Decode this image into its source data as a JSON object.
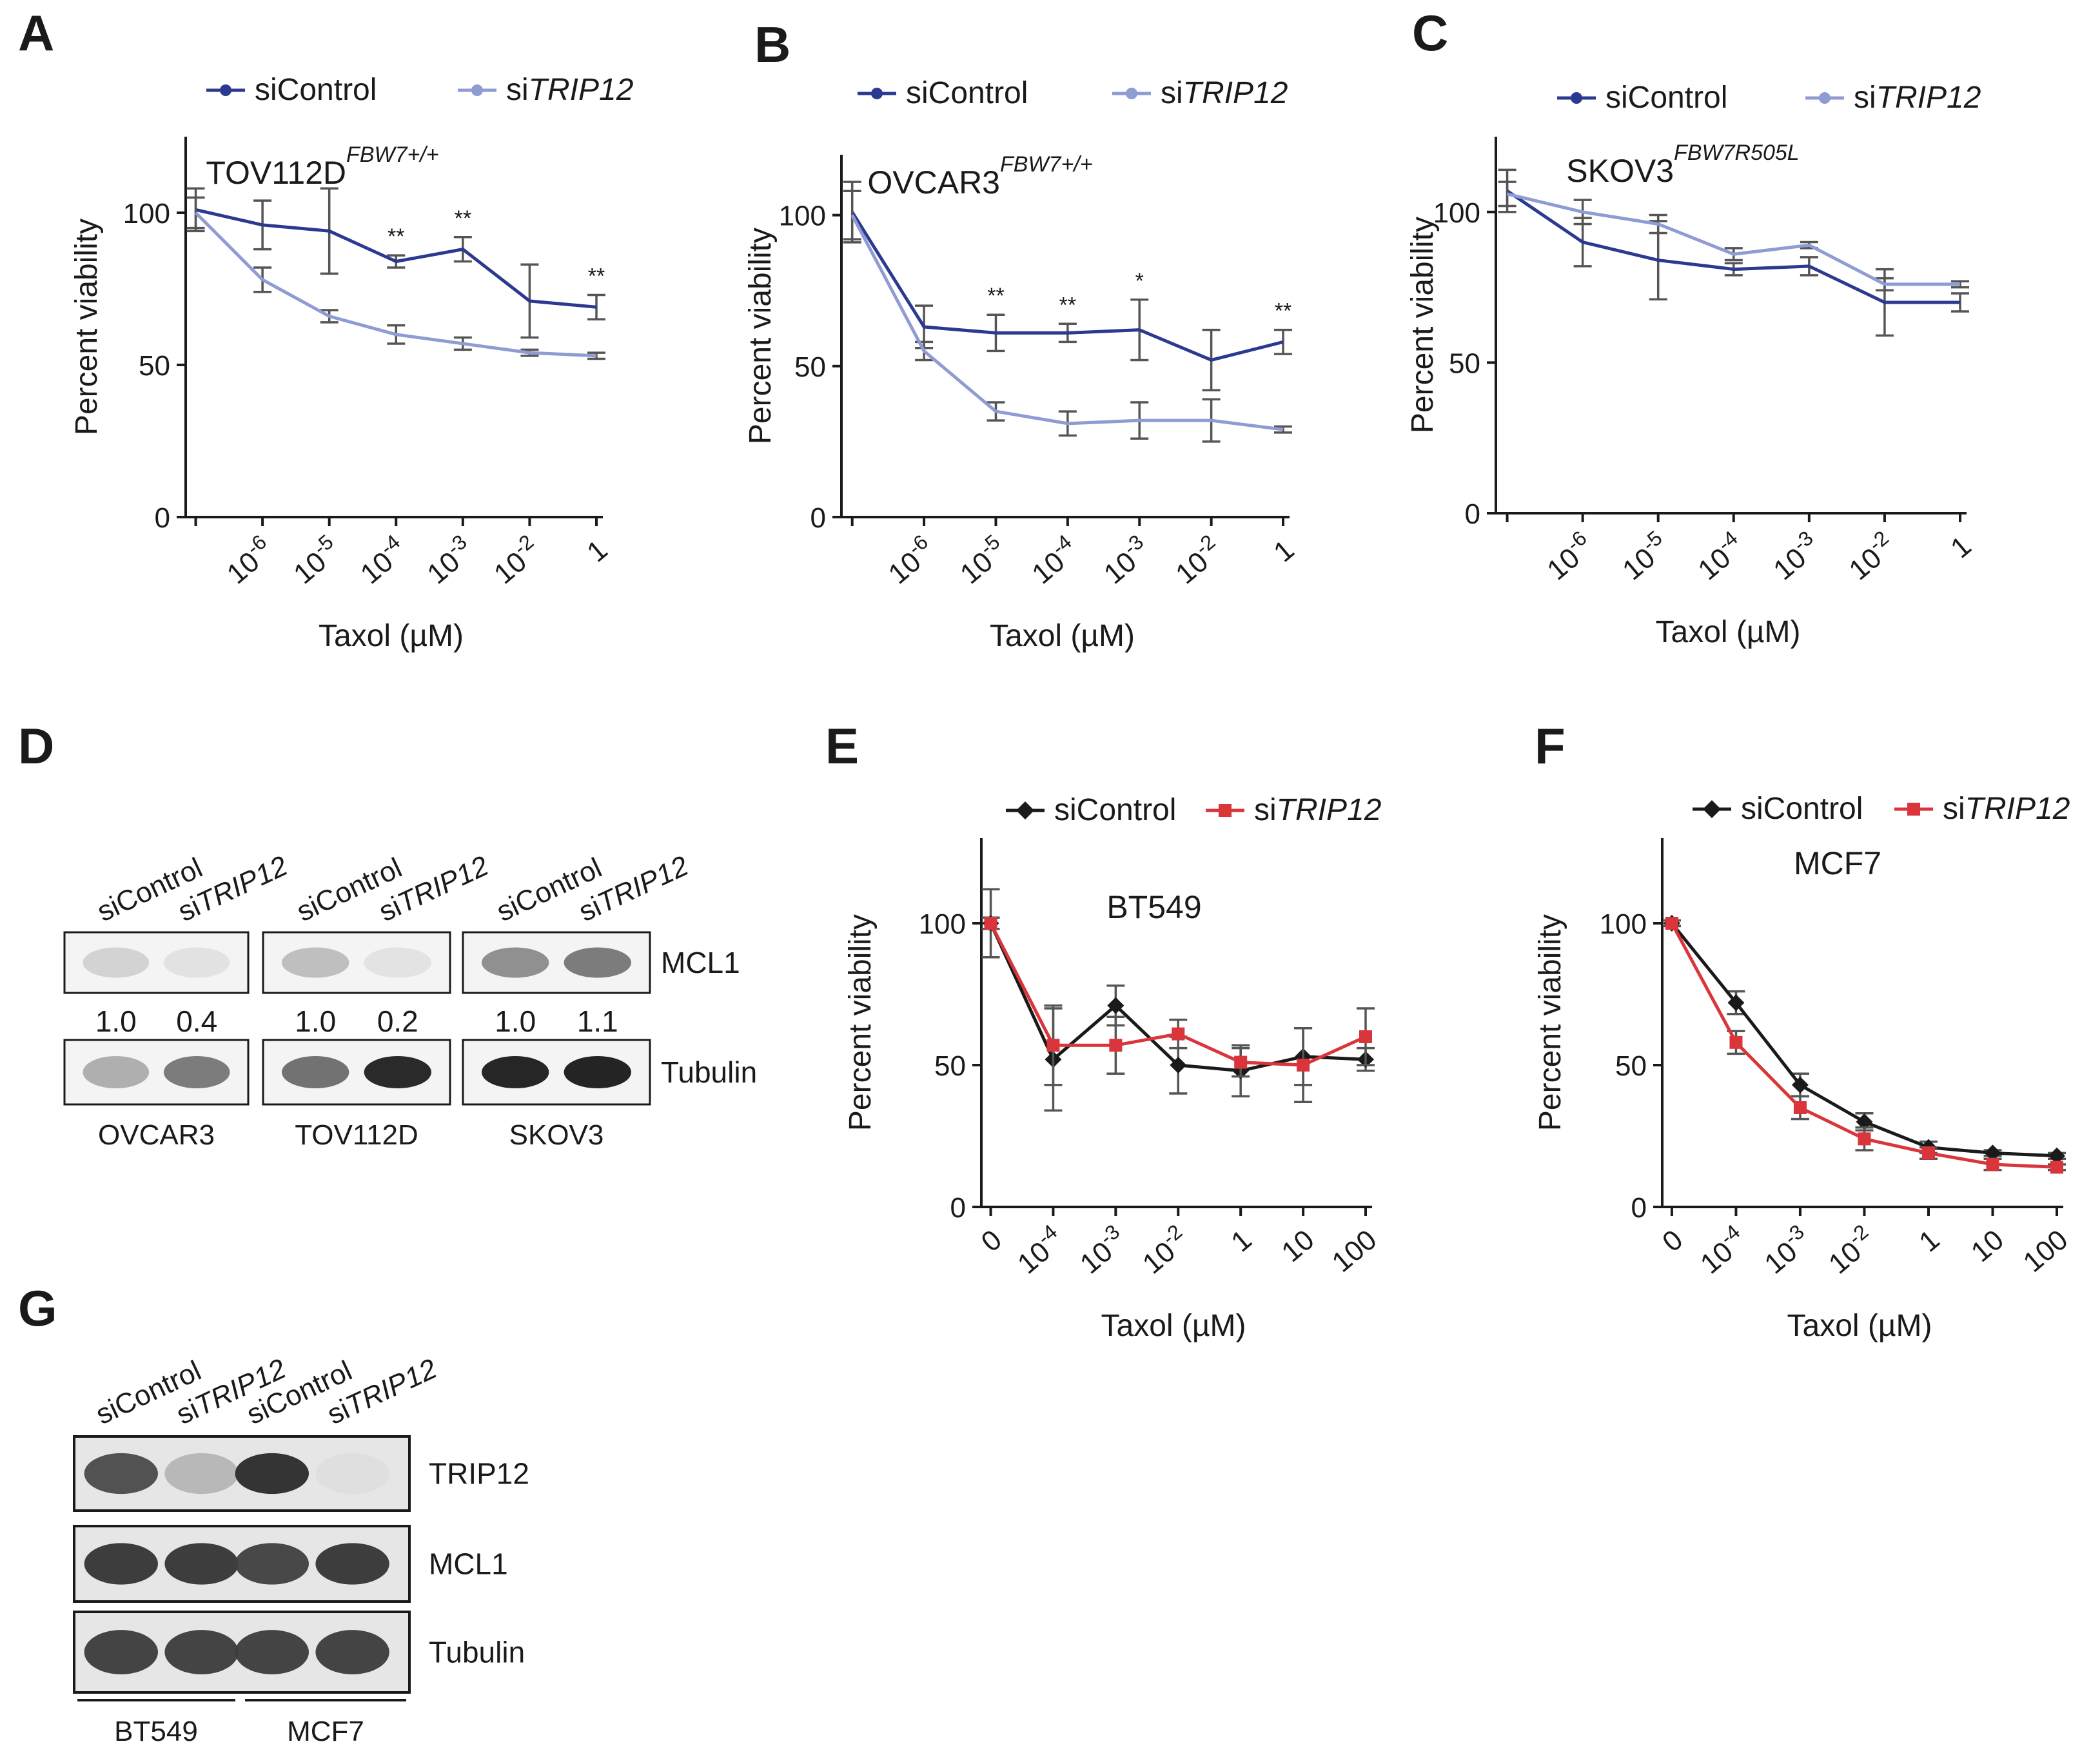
{
  "panels": {
    "A": "A",
    "B": "B",
    "C": "C",
    "D": "D",
    "E": "E",
    "F": "F",
    "G": "G"
  },
  "chart_data": [
    {
      "id": "A",
      "type": "line",
      "cell_line": "TOV112D",
      "superscript": "FBW7+/+",
      "xlabel": "Taxol (µM)",
      "ylabel": "Percent viability",
      "ylim": [
        0,
        125
      ],
      "yticks": [
        "0",
        "50",
        "100"
      ],
      "x_ticks": [
        "10^-6",
        "10^-5",
        "10^-4",
        "10^-3",
        "10^-2",
        "1"
      ],
      "colors": {
        "siControl": "#2b3990",
        "siTRIP12": "#8f9bd3"
      },
      "series": [
        {
          "name": "siControl",
          "prefix": "si",
          "label": "Control",
          "italic": false,
          "values": [
            101,
            96,
            94,
            84,
            88,
            71,
            69
          ],
          "errors": [
            7,
            8,
            14,
            2,
            4,
            12,
            4
          ]
        },
        {
          "name": "siTRIP12",
          "prefix": "si",
          "label": "TRIP12",
          "italic": true,
          "values": [
            100,
            78,
            66,
            60,
            57,
            54,
            53
          ],
          "errors": [
            5,
            4,
            2,
            3,
            2,
            1,
            1
          ]
        }
      ],
      "annotations": [
        "",
        "",
        "",
        "**",
        "**",
        "",
        "**"
      ]
    },
    {
      "id": "B",
      "type": "line",
      "cell_line": "OVCAR3",
      "superscript": "FBW7+/+",
      "xlabel": "Taxol (µM)",
      "ylabel": "Percent viability",
      "ylim": [
        0,
        120
      ],
      "yticks": [
        "0",
        "50",
        "100"
      ],
      "x_ticks": [
        "10^-6",
        "10^-5",
        "10^-4",
        "10^-3",
        "10^-2",
        "1"
      ],
      "colors": {
        "siControl": "#2b3990",
        "siTRIP12": "#8f9bd3"
      },
      "series": [
        {
          "name": "siControl",
          "prefix": "si",
          "label": "Control",
          "italic": false,
          "values": [
            101,
            63,
            61,
            61,
            62,
            52,
            58
          ],
          "errors": [
            10,
            7,
            6,
            3,
            10,
            10,
            4
          ]
        },
        {
          "name": "siTRIP12",
          "prefix": "si",
          "label": "TRIP12",
          "italic": true,
          "values": [
            100,
            55,
            35,
            31,
            32,
            32,
            29
          ],
          "errors": [
            8,
            3,
            3,
            4,
            6,
            7,
            1
          ]
        }
      ],
      "annotations": [
        "",
        "",
        "**",
        "**",
        "*",
        "",
        "**"
      ]
    },
    {
      "id": "C",
      "type": "line",
      "cell_line": "SKOV3",
      "superscript": "FBW7R505L",
      "xlabel": "Taxol (µM)",
      "ylabel": "Percent viability",
      "ylim": [
        0,
        125
      ],
      "yticks": [
        "0",
        "50",
        "100"
      ],
      "x_ticks": [
        "10^-6",
        "10^-5",
        "10^-4",
        "10^-3",
        "10^-2",
        "1"
      ],
      "colors": {
        "siControl": "#2b3990",
        "siTRIP12": "#8f9bd3"
      },
      "series": [
        {
          "name": "siControl",
          "prefix": "si",
          "label": "Control",
          "italic": false,
          "values": [
            107,
            90,
            84,
            81,
            82,
            70,
            70
          ],
          "errors": [
            7,
            8,
            13,
            2,
            3,
            11,
            3
          ]
        },
        {
          "name": "siTRIP12",
          "prefix": "si",
          "label": "TRIP12",
          "italic": true,
          "values": [
            106,
            100,
            96,
            86,
            89,
            76,
            76
          ],
          "errors": [
            4,
            4,
            3,
            2,
            1,
            2,
            1
          ]
        }
      ],
      "annotations": [
        "",
        "",
        "",
        "",
        "",
        "",
        ""
      ]
    },
    {
      "id": "E",
      "type": "line",
      "cell_line": "BT549",
      "superscript": "",
      "xlabel": "Taxol (µM)",
      "ylabel": "Percent viability",
      "ylim": [
        0,
        130
      ],
      "yticks": [
        "0",
        "50",
        "100"
      ],
      "x_ticks": [
        "0",
        "10^-4",
        "10^-3",
        "10^-2",
        "1",
        "10",
        "100"
      ],
      "colors": {
        "siControl": "#1a1a1a",
        "siTRIP12": "#d9353b"
      },
      "series": [
        {
          "name": "siControl",
          "prefix": "si",
          "label": "Control",
          "italic": false,
          "values": [
            100,
            52,
            71,
            50,
            48,
            53,
            52
          ],
          "errors": [
            12,
            18,
            7,
            10,
            9,
            10,
            4
          ]
        },
        {
          "name": "siTRIP12",
          "prefix": "si",
          "label": "TRIP12",
          "italic": true,
          "values": [
            100,
            57,
            57,
            61,
            51,
            50,
            60
          ],
          "errors": [
            2,
            14,
            10,
            5,
            5,
            13,
            10
          ]
        }
      ],
      "annotations": [
        "",
        "",
        "",
        "",
        "",
        "",
        ""
      ]
    },
    {
      "id": "F",
      "type": "line",
      "cell_line": "MCF7",
      "superscript": "",
      "xlabel": "Taxol (µM)",
      "ylabel": "Percent viability",
      "ylim": [
        0,
        130
      ],
      "yticks": [
        "0",
        "50",
        "100"
      ],
      "x_ticks": [
        "0",
        "10^-4",
        "10^-3",
        "10^-2",
        "1",
        "10",
        "100"
      ],
      "colors": {
        "siControl": "#1a1a1a",
        "siTRIP12": "#d9353b"
      },
      "series": [
        {
          "name": "siControl",
          "prefix": "si",
          "label": "Control",
          "italic": false,
          "values": [
            100,
            72,
            43,
            30,
            21,
            19,
            18
          ],
          "errors": [
            1,
            4,
            4,
            3,
            2,
            1,
            1
          ]
        },
        {
          "name": "siTRIP12",
          "prefix": "si",
          "label": "TRIP12",
          "italic": true,
          "values": [
            100,
            58,
            35,
            24,
            19,
            15,
            14
          ],
          "errors": [
            1,
            4,
            4,
            4,
            2,
            2,
            1
          ]
        }
      ],
      "annotations": [
        "",
        "",
        "",
        "",
        "",
        "",
        ""
      ]
    }
  ],
  "blots": {
    "D": {
      "lanes": [
        {
          "prefix": "si",
          "label": "Control",
          "italic": false
        },
        {
          "prefix": "si",
          "label": "TRIP12",
          "italic": true
        },
        {
          "prefix": "si",
          "label": "Control",
          "italic": false
        },
        {
          "prefix": "si",
          "label": "TRIP12",
          "italic": true
        },
        {
          "prefix": "si",
          "label": "Control",
          "italic": false
        },
        {
          "prefix": "si",
          "label": "TRIP12",
          "italic": true
        }
      ],
      "rows": [
        "MCL1",
        "Tubulin"
      ],
      "quant": [
        "1.0",
        "0.4",
        "1.0",
        "0.2",
        "1.0",
        "1.1"
      ],
      "cell_lines": [
        "OVCAR3",
        "TOV112D",
        "SKOV3"
      ],
      "band_intensity": [
        [
          0.12,
          0.05,
          0.22,
          0.04,
          0.45,
          0.55
        ],
        [
          0.3,
          0.55,
          0.6,
          0.95,
          0.97,
          0.98
        ]
      ]
    },
    "G": {
      "lanes": [
        {
          "prefix": "si",
          "label": "Control",
          "italic": false
        },
        {
          "prefix": "si",
          "label": "TRIP12",
          "italic": true
        },
        {
          "prefix": "si",
          "label": "Control",
          "italic": false
        },
        {
          "prefix": "si",
          "label": "TRIP12",
          "italic": true
        }
      ],
      "rows": [
        "TRIP12",
        "MCL1",
        "Tubulin"
      ],
      "cell_lines": [
        "BT549",
        "MCF7"
      ],
      "band_intensity": [
        [
          0.75,
          0.25,
          0.9,
          0.06
        ],
        [
          0.85,
          0.85,
          0.8,
          0.85
        ],
        [
          0.82,
          0.82,
          0.82,
          0.82
        ]
      ]
    }
  }
}
